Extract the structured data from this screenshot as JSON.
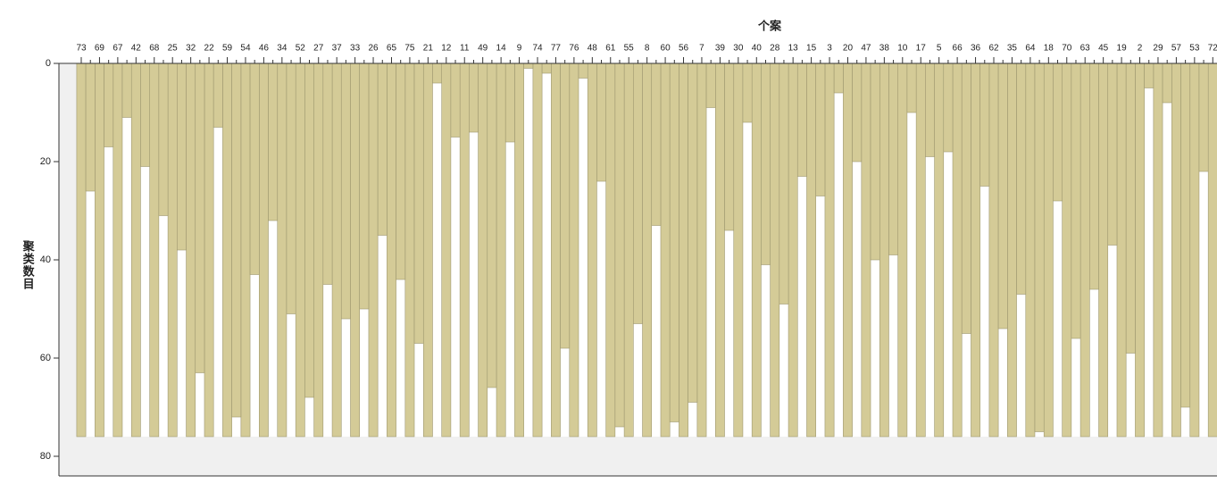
{
  "chart_data": {
    "type": "icicle",
    "title": "个案",
    "y_label": "聚类数目",
    "categories": [
      "73",
      "69",
      "67",
      "42",
      "68",
      "25",
      "32",
      "22",
      "59",
      "54",
      "46",
      "34",
      "52",
      "27",
      "37",
      "33",
      "26",
      "65",
      "75",
      "21",
      "12",
      "11",
      "49",
      "14",
      "9",
      "74",
      "77",
      "76",
      "48",
      "61",
      "55",
      "8",
      "60",
      "56",
      "7",
      "39",
      "30",
      "40",
      "28",
      "13",
      "15",
      "3",
      "20",
      "47",
      "38",
      "10",
      "17",
      "5",
      "66",
      "36",
      "62",
      "35",
      "64",
      "18",
      "70",
      "63",
      "45",
      "19",
      "2",
      "29",
      "57",
      "53",
      "72"
    ],
    "values": [
      76,
      76,
      76,
      76,
      76,
      76,
      76,
      76,
      76,
      76,
      76,
      76,
      76,
      76,
      76,
      76,
      76,
      76,
      76,
      76,
      76,
      76,
      76,
      76,
      76,
      76,
      76,
      76,
      76,
      76,
      76,
      76,
      76,
      76,
      76,
      76,
      76,
      76,
      76,
      76,
      76,
      76,
      76,
      76,
      76,
      76,
      76,
      76,
      76,
      76,
      76,
      76,
      76,
      76,
      76,
      76,
      76,
      76,
      76,
      76,
      76,
      76,
      76
    ],
    "gap_values": [
      26,
      17,
      11,
      21,
      31,
      38,
      63,
      13,
      72,
      43,
      32,
      51,
      68,
      45,
      52,
      50,
      35,
      44,
      57,
      4,
      15,
      14,
      66,
      16,
      1,
      2,
      58,
      3,
      24,
      74,
      53,
      33,
      73,
      69,
      9,
      34,
      12,
      41,
      49,
      23,
      27,
      6,
      20,
      40,
      39,
      10,
      19,
      18,
      55,
      25,
      54,
      47,
      75,
      28,
      56,
      46,
      37,
      59,
      5,
      8,
      70,
      22
    ],
    "color": "#d4cb97",
    "ylim": [
      0,
      84
    ],
    "yticks": [
      0,
      20,
      40,
      60,
      80
    ]
  }
}
